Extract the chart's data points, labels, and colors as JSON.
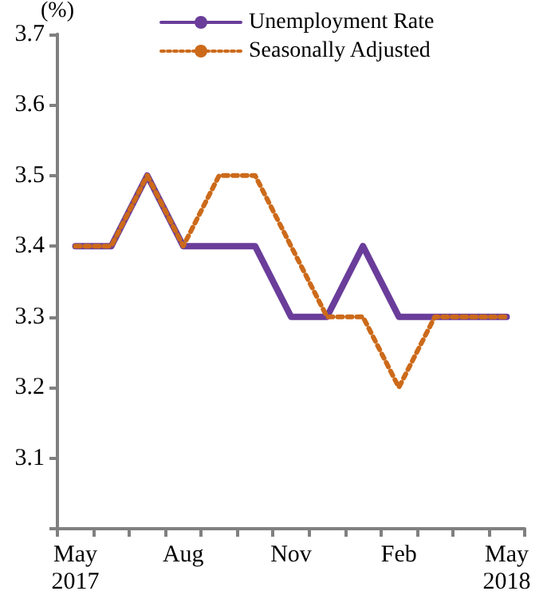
{
  "chart_data": {
    "type": "line",
    "ylabel": "(%)",
    "categories": [
      "May\n2017",
      null,
      null,
      "Aug",
      null,
      null,
      "Nov",
      null,
      null,
      "Feb",
      null,
      null,
      "May\n2018"
    ],
    "series": [
      {
        "name": "Unemployment Rate",
        "color": "#6a3d9a",
        "line_style": "solid",
        "values": [
          3.4,
          3.4,
          3.5,
          3.4,
          3.4,
          3.4,
          3.3,
          3.3,
          3.4,
          3.3,
          3.3,
          3.3,
          3.3
        ]
      },
      {
        "name": "Seasonally Adjusted",
        "color": "#cc6a1a",
        "line_style": "dotted",
        "values": [
          3.4,
          3.4,
          3.5,
          3.4,
          3.5,
          3.5,
          3.4,
          3.3,
          3.3,
          3.2,
          3.3,
          3.3,
          3.3
        ]
      }
    ],
    "ylim": [
      3.0,
      3.7
    ],
    "yticks": [
      {
        "value": 3.0,
        "label": null
      },
      3.1,
      3.2,
      3.3,
      3.4,
      3.5,
      3.6,
      3.7
    ],
    "grid": false,
    "legend": "top",
    "marker": "none"
  }
}
